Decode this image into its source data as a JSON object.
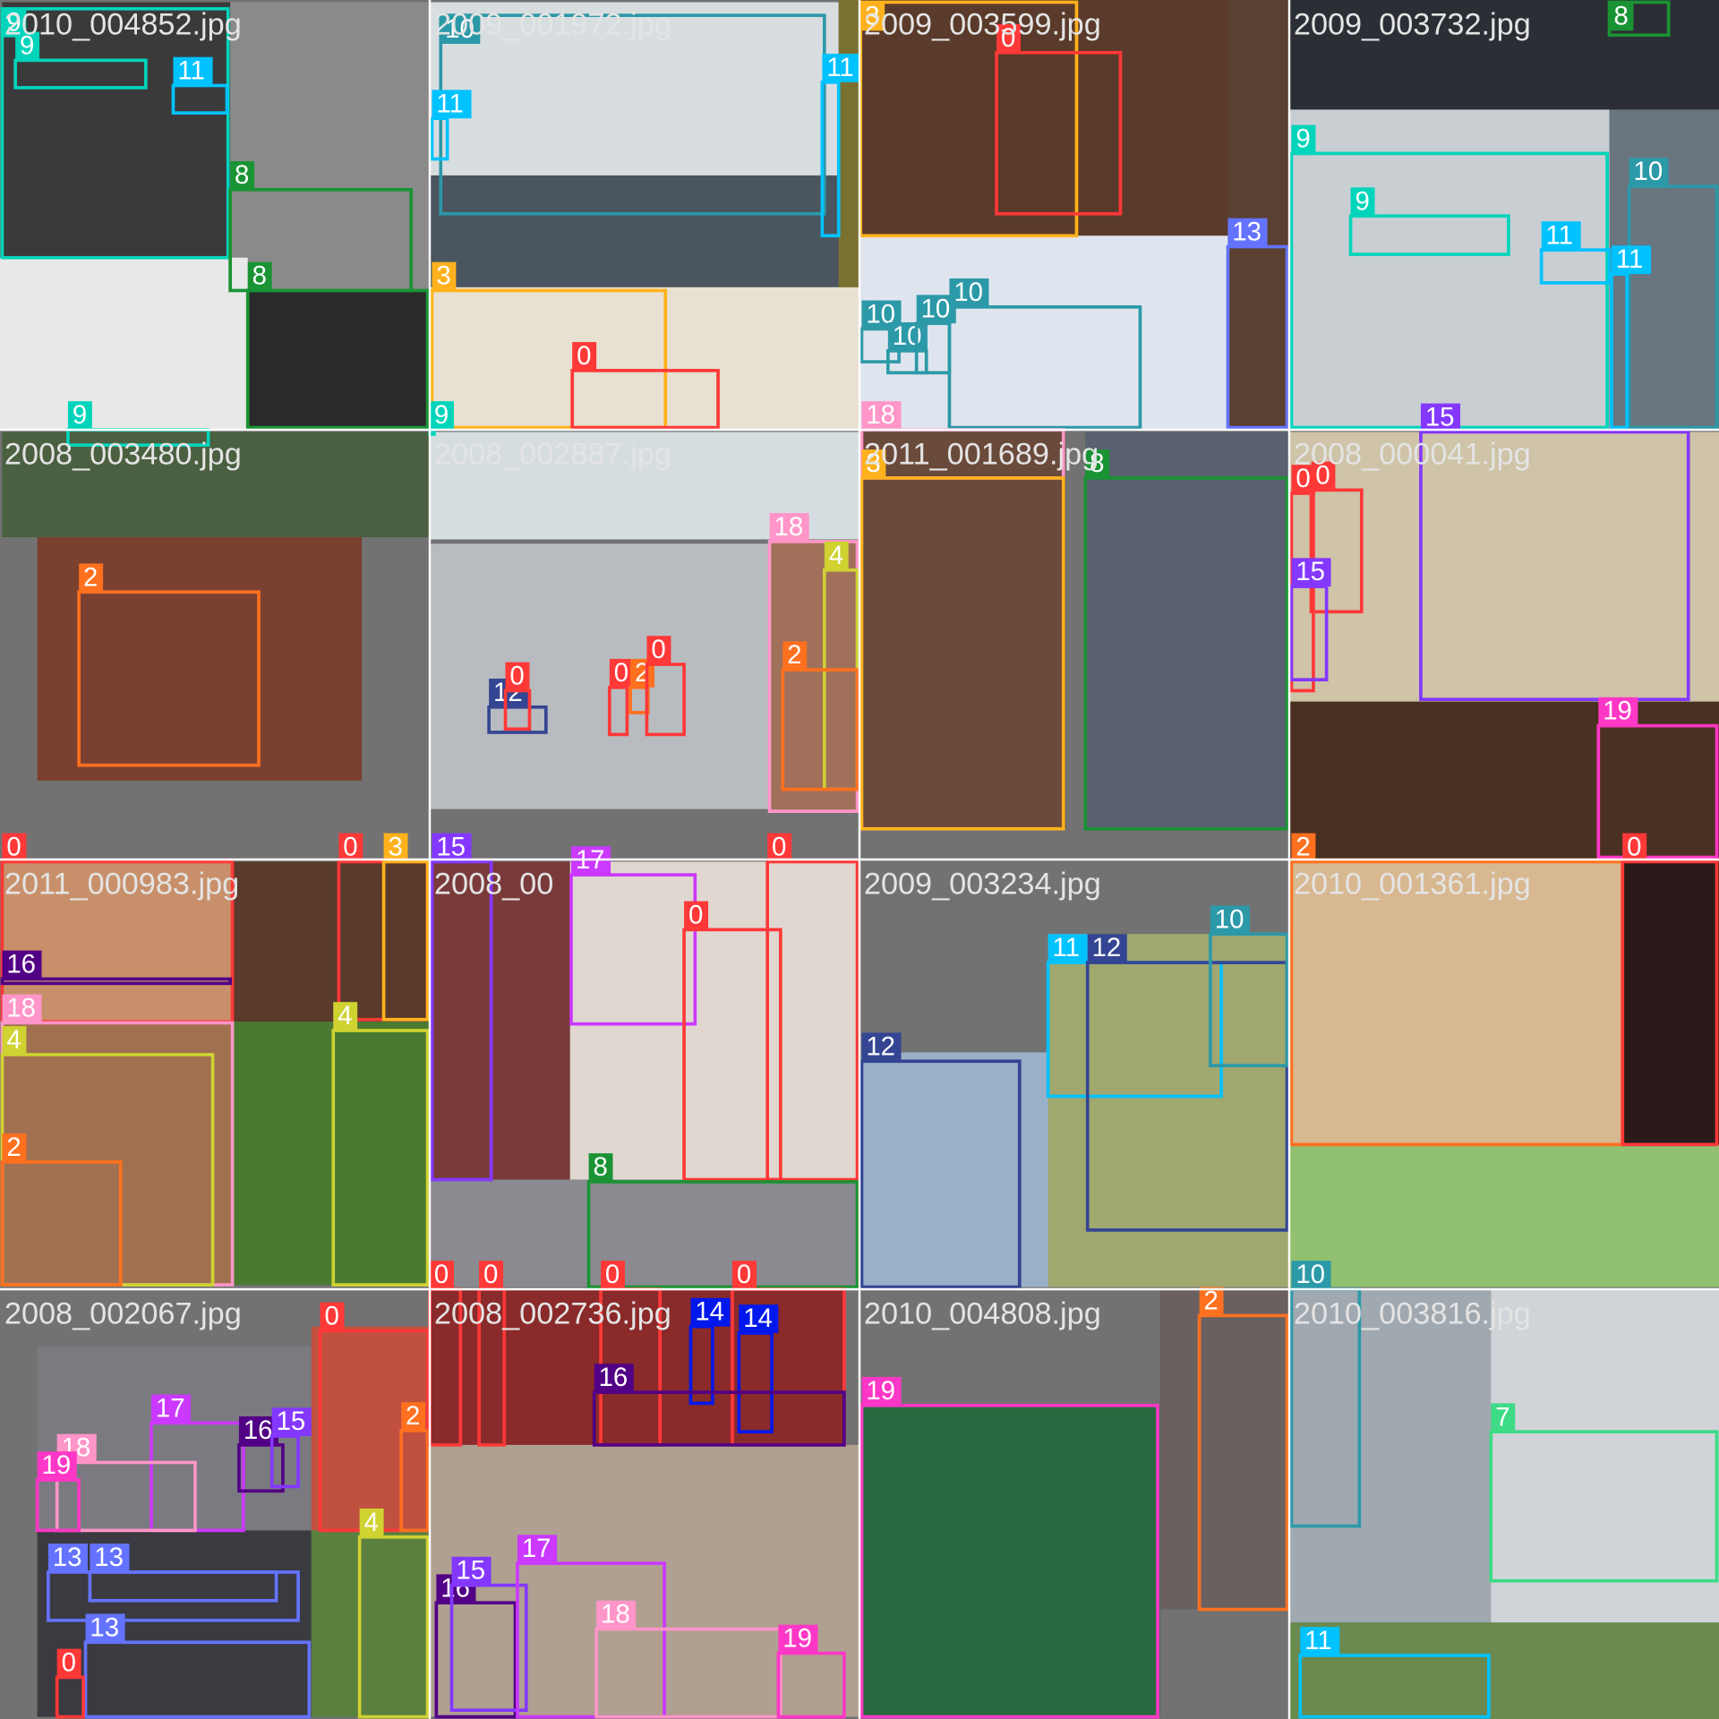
{
  "tiles": [
    {
      "filename": "2010_004852.jpg",
      "boxes": [
        "9",
        "9",
        "11",
        "8",
        "8",
        "9"
      ]
    },
    {
      "filename": "2009_001972.jpg",
      "boxes": [
        "10",
        "11",
        "11",
        "3",
        "0",
        "9"
      ]
    },
    {
      "filename": "2009_003599.jpg",
      "boxes": [
        "3",
        "0",
        "13",
        "10",
        "10",
        "10",
        "10",
        "18"
      ]
    },
    {
      "filename": "2009_003732.jpg",
      "boxes": [
        "8",
        "9",
        "9",
        "11",
        "10",
        "11"
      ]
    },
    {
      "filename": "2008_003480.jpg",
      "boxes": [
        "2"
      ]
    },
    {
      "filename": "2008_002887.jpg",
      "boxes": [
        "18",
        "4",
        "2",
        "12",
        "0",
        "0",
        "2",
        "0"
      ]
    },
    {
      "filename": "2011_001689.jpg",
      "boxes": [
        "3",
        "8"
      ]
    },
    {
      "filename": "2008_000041.jpg",
      "boxes": [
        "15",
        "0",
        "0",
        "15",
        "19"
      ]
    },
    {
      "filename": "2011_000983.jpg",
      "boxes": [
        "0",
        "16",
        "18",
        "4",
        "2",
        "0",
        "3",
        "4"
      ]
    },
    {
      "filename": "2008_00",
      "boxes": [
        "15",
        "17",
        "0",
        "0",
        "8"
      ]
    },
    {
      "filename": "2009_003234.jpg",
      "boxes": [
        "12",
        "11",
        "12",
        "10"
      ]
    },
    {
      "filename": "2010_001361.jpg",
      "boxes": [
        "2",
        "0"
      ]
    },
    {
      "filename": "2008_002067.jpg",
      "boxes": [
        "0",
        "2",
        "4",
        "17",
        "18",
        "19",
        "16",
        "15",
        "13",
        "13",
        "13",
        "0"
      ]
    },
    {
      "filename": "2008_002736.jpg",
      "boxes": [
        "0",
        "0",
        "0",
        "0",
        "14",
        "14",
        "16",
        "16",
        "15",
        "17",
        "18",
        "19"
      ]
    },
    {
      "filename": "2010_004808.jpg",
      "boxes": [
        "19",
        "2"
      ]
    },
    {
      "filename": "2010_003816.jpg",
      "boxes": [
        "10",
        "7",
        "11"
      ]
    }
  ]
}
